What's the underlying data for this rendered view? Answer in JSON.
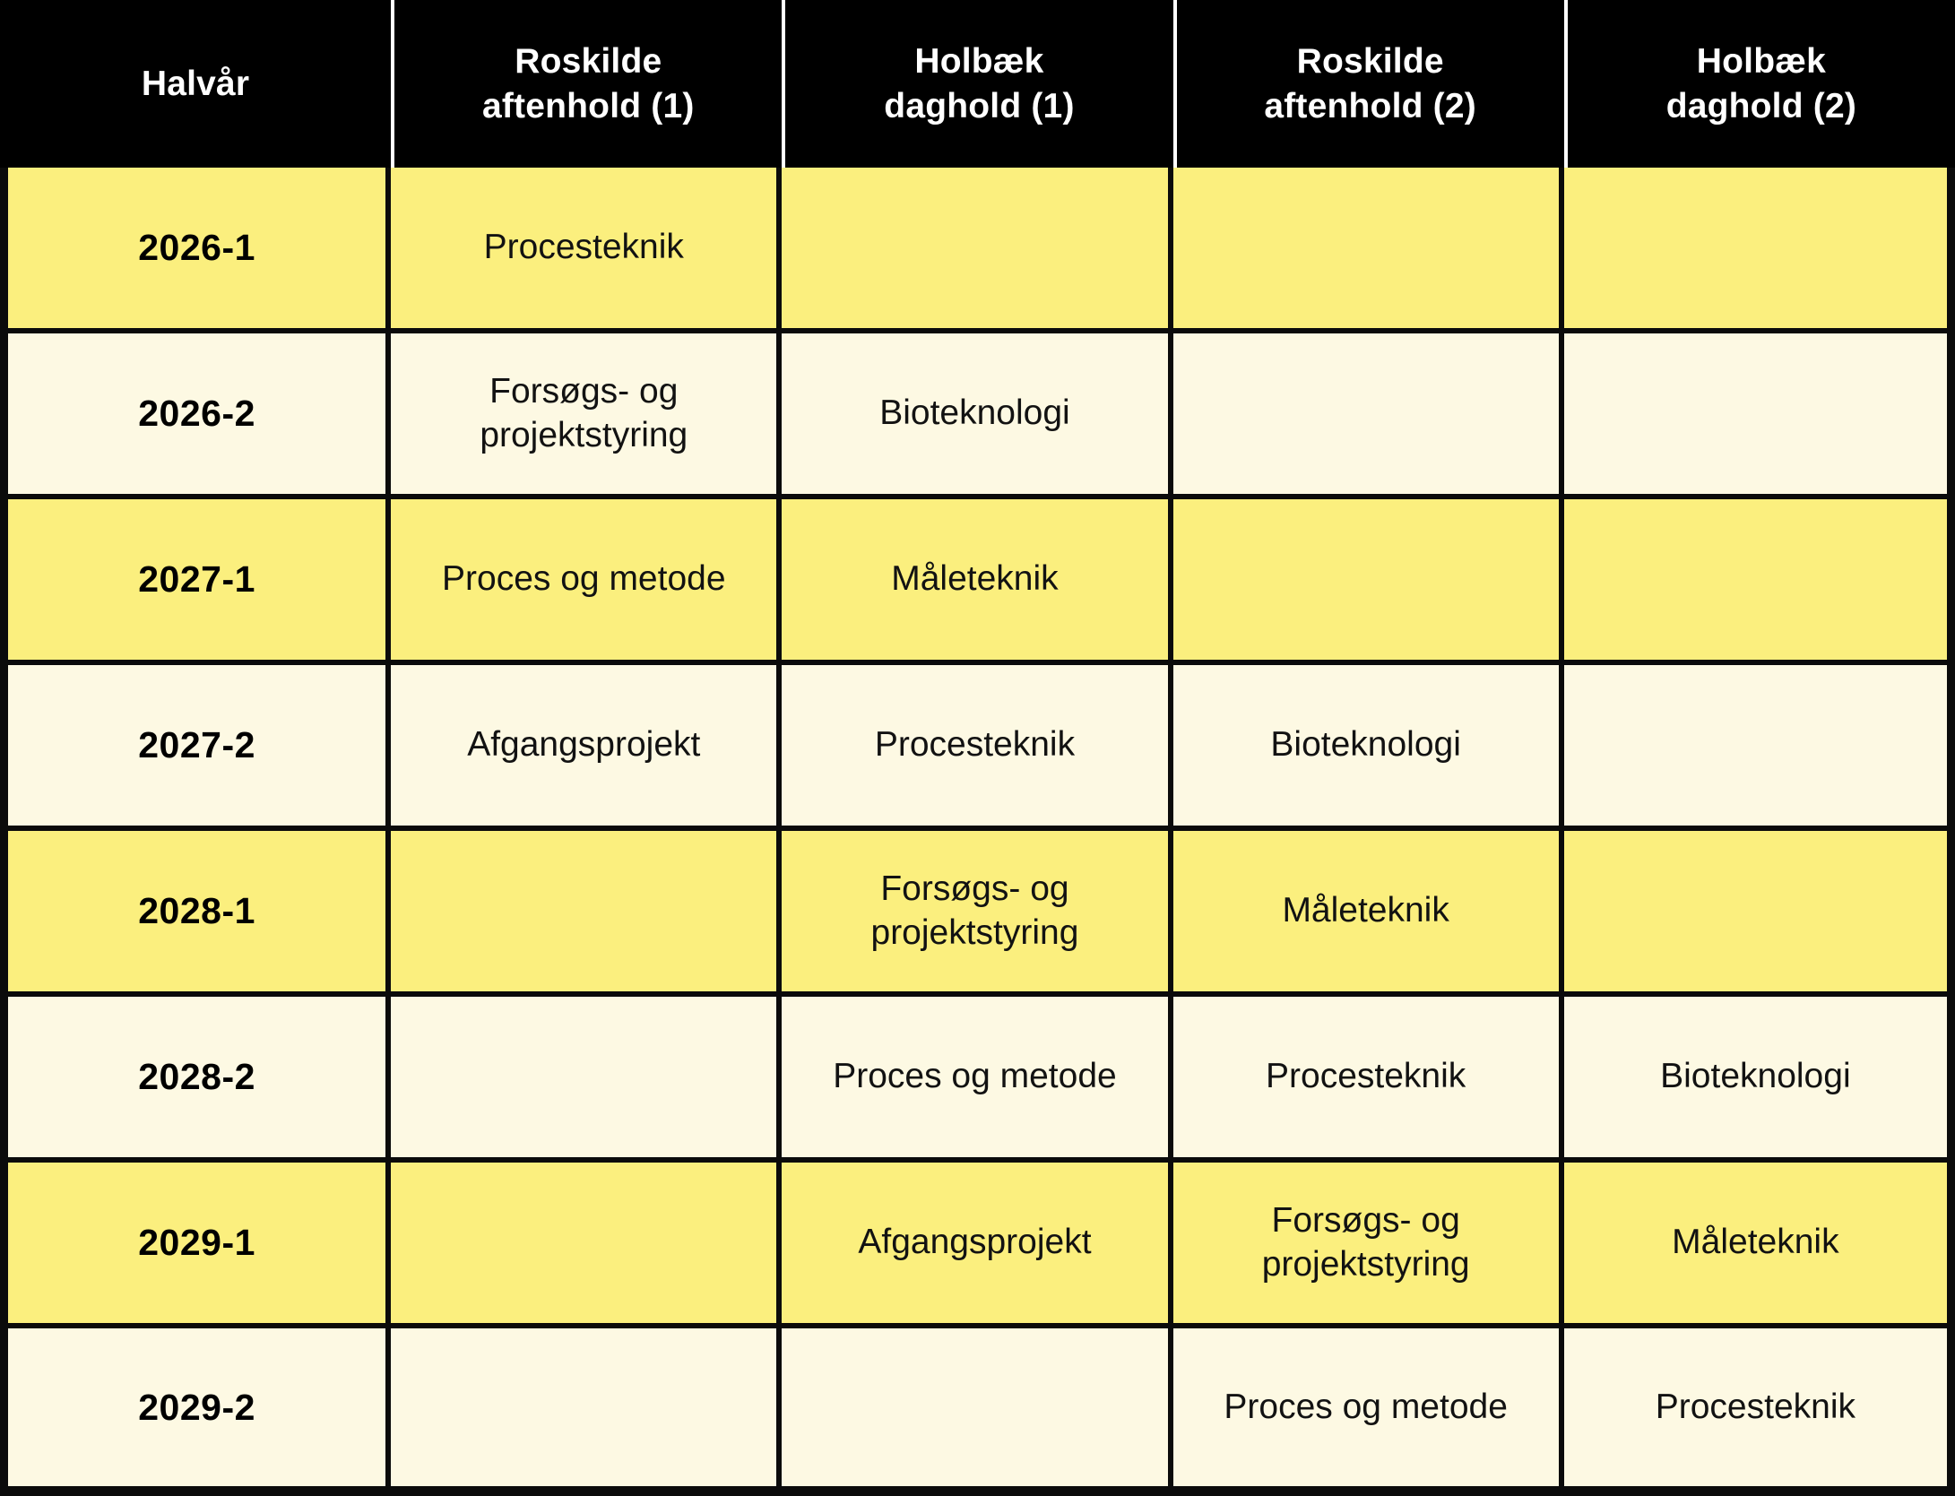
{
  "table": {
    "columns": [
      "Halvår",
      "Roskilde\naftenhold (1)",
      "Holbæk\ndaghold (1)",
      "Roskilde\naftenhold (2)",
      "Holbæk\ndaghold (2)"
    ],
    "rows": [
      {
        "halvar": "2026-1",
        "cells": [
          "Procesteknik",
          "",
          "",
          ""
        ]
      },
      {
        "halvar": "2026-2",
        "cells": [
          "Forsøgs- og\nprojektstyring",
          "Bioteknologi",
          "",
          ""
        ]
      },
      {
        "halvar": "2027-1",
        "cells": [
          "Proces og metode",
          "Måleteknik",
          "",
          ""
        ]
      },
      {
        "halvar": "2027-2",
        "cells": [
          "Afgangsprojekt",
          "Procesteknik",
          "Bioteknologi",
          ""
        ]
      },
      {
        "halvar": "2028-1",
        "cells": [
          "",
          "Forsøgs- og\nprojektstyring",
          "Måleteknik",
          ""
        ]
      },
      {
        "halvar": "2028-2",
        "cells": [
          "",
          "Proces og metode",
          "Procesteknik",
          "Bioteknologi"
        ]
      },
      {
        "halvar": "2029-1",
        "cells": [
          "",
          "Afgangsprojekt",
          "Forsøgs- og\nprojektstyring",
          "Måleteknik"
        ]
      },
      {
        "halvar": "2029-2",
        "cells": [
          "",
          "",
          "Proces og metode",
          "Procesteknik"
        ]
      }
    ]
  },
  "colors": {
    "header_background": "#000000",
    "header_text": "#FFFFFF",
    "header_separator": "#FFFFFF",
    "row_yellow": "#FBEF7E",
    "row_cream": "#FDF9E3",
    "grid_border": "#0B0B0B",
    "body_text": "#121212"
  }
}
